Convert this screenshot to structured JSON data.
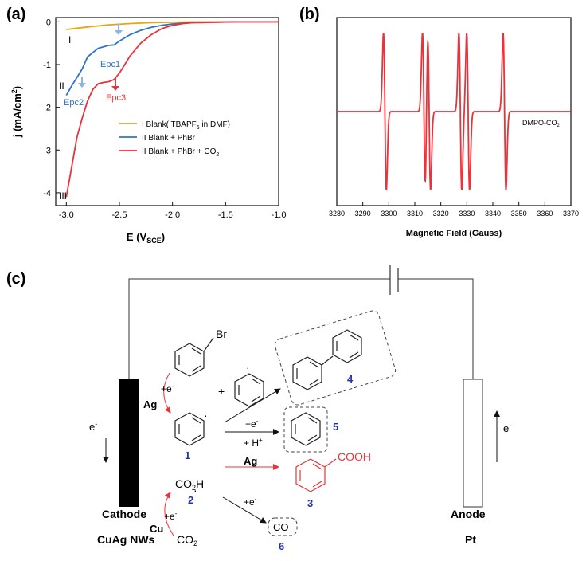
{
  "panel_a": {
    "letter": "(a)",
    "xlabel_main": "E (V",
    "xlabel_sub": "SCE",
    "xlabel_close": ")",
    "ylabel_main": "j (mA/cm",
    "ylabel_sup": "2",
    "ylabel_close": ")",
    "curve_labels": {
      "I": "I",
      "II": "II",
      "III": "III"
    },
    "annotations": {
      "epc1": "Epc1",
      "epc2": "Epc2",
      "epc3": "Epc3"
    },
    "legend": [
      {
        "main": "I Blank( TBAPF",
        "sub": "6",
        "tail": " in DMF)",
        "color": "#E8A317"
      },
      {
        "main": "II Blank + PhBr",
        "sub": "",
        "tail": "",
        "color": "#2E74C8"
      },
      {
        "main": "II Blank + PhBr + CO",
        "sub": "2",
        "tail": "",
        "color": "#E8333A"
      }
    ]
  },
  "panel_b": {
    "letter": "(b)",
    "xlabel": "Magnetic Field (Gauss)",
    "annotation": "DMPO-CO",
    "annotation_sub": "2"
  },
  "panel_c": {
    "letter": "(c)",
    "labels": {
      "br": "Br",
      "ag1": "Ag",
      "e1": "+e",
      "e1_sup": "-",
      "plus": "+",
      "dot": "·",
      "num4": "4",
      "num1": "1",
      "e2": "+e",
      "e2_sup": "-",
      "h": "+ H",
      "h_sup": "+",
      "num5": "5",
      "ag2": "Ag",
      "cooh": "COOH",
      "num3": "3",
      "co2h": "CO",
      "co2h_sub": "2",
      "co2h_h": "H",
      "num2": "2",
      "e3": "+e",
      "e3_sup": "-",
      "e4": "+e",
      "e4_sup": "-",
      "cu": "Cu",
      "cathode": "Cathode",
      "cuag": "CuAg NWs",
      "co2": "CO",
      "co2_sub": "2",
      "co": "CO",
      "num6": "6",
      "eleft": "e",
      "eleft_sup": "-",
      "eright": "e",
      "eright_sup": "-",
      "anode": "Anode",
      "pt": "Pt"
    }
  },
  "chart_data": [
    {
      "type": "line",
      "xlabel": "E (VSCE)",
      "ylabel": "j (mA/cm2)",
      "xlim": [
        -3.1,
        -1.0
      ],
      "ylim": [
        -4.3,
        0.1
      ],
      "xticks": [
        -3.0,
        -2.5,
        -2.0,
        -1.5,
        -1.0
      ],
      "xtick_labels": [
        "-3.0",
        "-2.5",
        "-2.0",
        "-1.5",
        "-1.0"
      ],
      "yticks": [
        0,
        -1,
        -2,
        -3,
        -4
      ],
      "ytick_labels": [
        "0",
        "-1",
        "-2",
        "-3",
        "-4"
      ],
      "legend_position": "right",
      "series": [
        {
          "name": "I Blank( TBAPF6 in DMF)",
          "color": "#E8A317",
          "x": [
            -3.0,
            -2.8,
            -2.6,
            -2.4,
            -2.2,
            -2.0,
            -1.8,
            -1.0
          ],
          "y": [
            -0.18,
            -0.12,
            -0.07,
            -0.04,
            -0.02,
            -0.01,
            0.0,
            0.0
          ]
        },
        {
          "name": "II Blank + PhBr",
          "color": "#2E74C8",
          "x": [
            -3.0,
            -2.95,
            -2.9,
            -2.85,
            -2.8,
            -2.7,
            -2.6,
            -2.55,
            -2.5,
            -2.4,
            -2.3,
            -2.2,
            -2.1,
            -2.0,
            -1.9,
            -1.8,
            -1.6,
            -1.4,
            -1.0
          ],
          "y": [
            -1.72,
            -1.5,
            -1.3,
            -1.1,
            -0.82,
            -0.62,
            -0.55,
            -0.54,
            -0.45,
            -0.3,
            -0.2,
            -0.13,
            -0.08,
            -0.05,
            -0.03,
            -0.02,
            -0.01,
            0.0,
            0.0
          ]
        },
        {
          "name": "II Blank + PhBr + CO2",
          "color": "#E8333A",
          "x": [
            -3.0,
            -2.95,
            -2.9,
            -2.85,
            -2.8,
            -2.75,
            -2.7,
            -2.65,
            -2.6,
            -2.55,
            -2.5,
            -2.45,
            -2.4,
            -2.3,
            -2.2,
            -2.1,
            -2.0,
            -1.9,
            -1.8,
            -1.6,
            -1.4,
            -1.0
          ],
          "y": [
            -4.1,
            -3.4,
            -2.7,
            -2.25,
            -1.85,
            -1.58,
            -1.45,
            -1.42,
            -1.4,
            -1.35,
            -1.2,
            -1.0,
            -0.8,
            -0.5,
            -0.3,
            -0.16,
            -0.08,
            -0.04,
            -0.02,
            -0.01,
            0.0,
            0.0
          ]
        }
      ]
    },
    {
      "type": "line",
      "xlabel": "Magnetic Field (Gauss)",
      "xlim": [
        3280,
        3370
      ],
      "xticks": [
        3280,
        3290,
        3300,
        3310,
        3320,
        3330,
        3340,
        3350,
        3360,
        3370
      ],
      "xtick_labels": [
        "3280",
        "3290",
        "3300",
        "3310",
        "3320",
        "3330",
        "3340",
        "3350",
        "3360",
        "3370"
      ],
      "baseline": 0,
      "ylim": [
        -1.2,
        1.2
      ],
      "series": [
        {
          "name": "DMPO-CO2",
          "color": "#E8333A",
          "peak_centers": [
            3298.5,
            3313.5,
            3315.5,
            3327.5,
            3330.5,
            3344.5
          ],
          "amplitude": 1.0
        }
      ]
    }
  ]
}
